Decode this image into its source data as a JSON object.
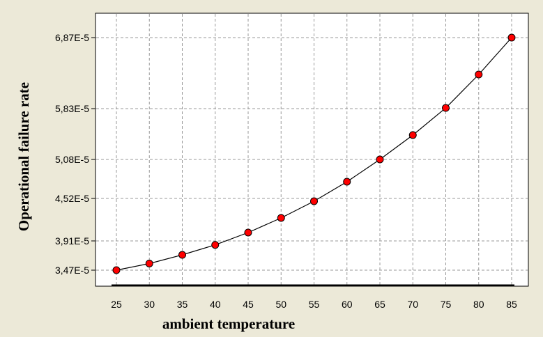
{
  "chart_data": {
    "type": "line",
    "title": "",
    "xlabel": "ambient temperature",
    "ylabel": "Operational failure rate",
    "x": [
      25,
      30,
      35,
      40,
      45,
      50,
      55,
      60,
      65,
      70,
      75,
      80,
      85
    ],
    "x_tick_labels": [
      "25",
      "30",
      "35",
      "40",
      "45",
      "50",
      "55",
      "60",
      "65",
      "70",
      "75",
      "80",
      "85"
    ],
    "y_ticks": [
      3.47e-05,
      3.91e-05,
      4.52e-05,
      5.08e-05,
      5.83e-05,
      6.87e-05
    ],
    "y_tick_labels": [
      "3,47E-5",
      "3,91E-5",
      "4,52E-5",
      "5,08E-5",
      "5,83E-5",
      "6,87E-5"
    ],
    "series": [
      {
        "values": [
          3.47e-05,
          3.57e-05,
          3.7e-05,
          3.85e-05,
          4.03e-05,
          4.24e-05,
          4.48e-05,
          4.76e-05,
          5.08e-05,
          5.44e-05,
          5.84e-05,
          6.33e-05,
          6.87e-05
        ]
      }
    ],
    "grid": true,
    "legend": "none",
    "colors": {
      "background": "#ece9d8",
      "plot_background": "#ffffff",
      "line": "#000000",
      "marker": "#ff0000",
      "grid": "#999999"
    }
  }
}
